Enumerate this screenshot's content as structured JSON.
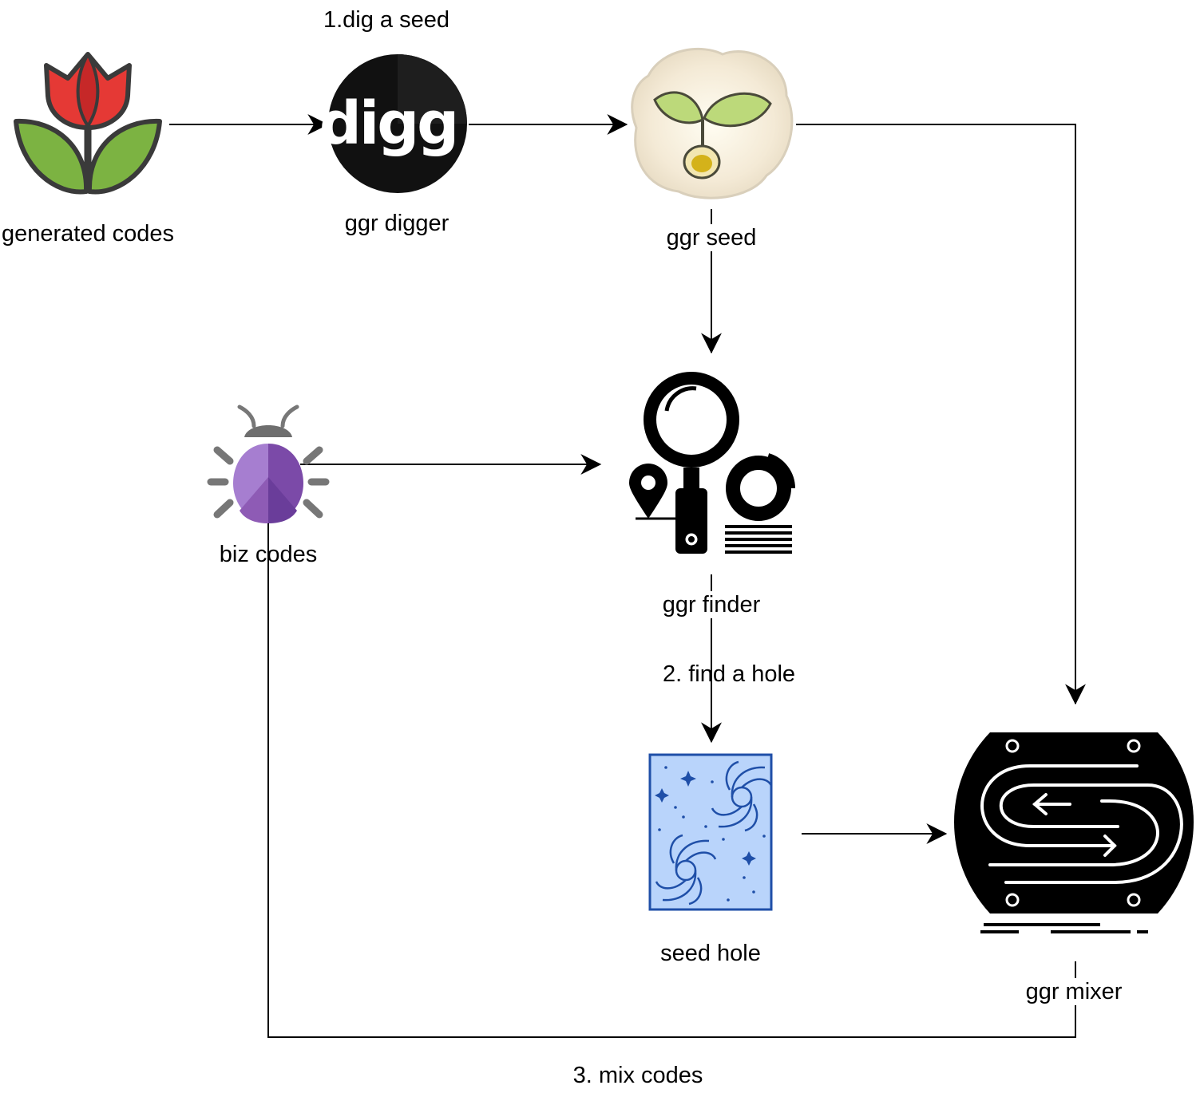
{
  "diagram": {
    "nodes": {
      "generated_codes": {
        "label": "generated codes",
        "icon": "tulip-icon"
      },
      "ggr_digger": {
        "label": "ggr digger",
        "icon": "digg-logo-icon",
        "logo_text": "digg"
      },
      "ggr_seed": {
        "label": "ggr seed",
        "icon": "seedling-icon"
      },
      "ggr_finder": {
        "label": "ggr finder",
        "icon": "magnifier-analytics-icon"
      },
      "biz_codes": {
        "label": "biz codes",
        "icon": "bug-icon"
      },
      "seed_hole": {
        "label": "seed hole",
        "icon": "black-hole-icon"
      },
      "ggr_mixer": {
        "label": "ggr mixer",
        "icon": "mixer-device-icon"
      }
    },
    "edge_labels": {
      "dig_seed": "1.dig a seed",
      "find_hole": "2. find a hole",
      "mix_codes": "3. mix codes"
    }
  },
  "colors": {
    "tulip_red": "#e53935",
    "tulip_green": "#7cb342",
    "outline": "#3a3a3a",
    "bug_purple": "#8e5bb5",
    "bug_dark_purple": "#6a3d9a",
    "bug_gray": "#777777",
    "hole_blue": "#b9d4fb",
    "hole_stroke": "#1f4fa8",
    "line": "#000000"
  }
}
